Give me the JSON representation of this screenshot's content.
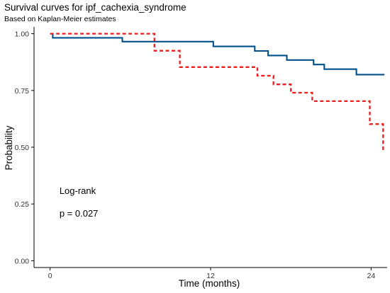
{
  "chart_data": {
    "type": "line",
    "title": "Survival curves for ipf_cachexia_syndrome",
    "subtitle": "Based on Kaplan-Meier estimates",
    "xlabel": "Time (months)",
    "ylabel": "Probability",
    "xlim": [
      -1.2,
      25.2
    ],
    "ylim": [
      -0.03,
      1.03
    ],
    "x_ticks": [
      0,
      12,
      24
    ],
    "y_ticks": [
      0.0,
      0.25,
      0.5,
      0.75,
      1.0
    ],
    "x_tick_labels": [
      "0",
      "12",
      "24"
    ],
    "y_tick_labels": [
      "0.00",
      "0.25",
      "0.50",
      "0.75",
      "1.00"
    ],
    "grid": false,
    "legend": "none",
    "annotations": [
      {
        "text": "Log-rank",
        "x": 0.7,
        "y": 0.295
      },
      {
        "text": "p = 0.027",
        "x": 0.7,
        "y": 0.195
      }
    ],
    "series": [
      {
        "color": "#00508C",
        "style": "solid",
        "points": [
          [
            0,
            1.0
          ],
          [
            0.2,
            0.982
          ],
          [
            5.4,
            0.965
          ],
          [
            12.2,
            0.944
          ],
          [
            15.3,
            0.924
          ],
          [
            16.3,
            0.904
          ],
          [
            17.7,
            0.884
          ],
          [
            19.7,
            0.864
          ],
          [
            20.5,
            0.844
          ],
          [
            22.9,
            0.82
          ],
          [
            25.0,
            0.82
          ]
        ]
      },
      {
        "color": "#EE1C1C",
        "style": "dashed",
        "points": [
          [
            0,
            1.0
          ],
          [
            7.8,
            0.925
          ],
          [
            8.5,
            0.925
          ],
          [
            9.7,
            0.853
          ],
          [
            15.5,
            0.815
          ],
          [
            16.7,
            0.777
          ],
          [
            18.0,
            0.74
          ],
          [
            19.6,
            0.703
          ],
          [
            23.9,
            0.602
          ],
          [
            24.9,
            0.483
          ]
        ]
      }
    ]
  }
}
